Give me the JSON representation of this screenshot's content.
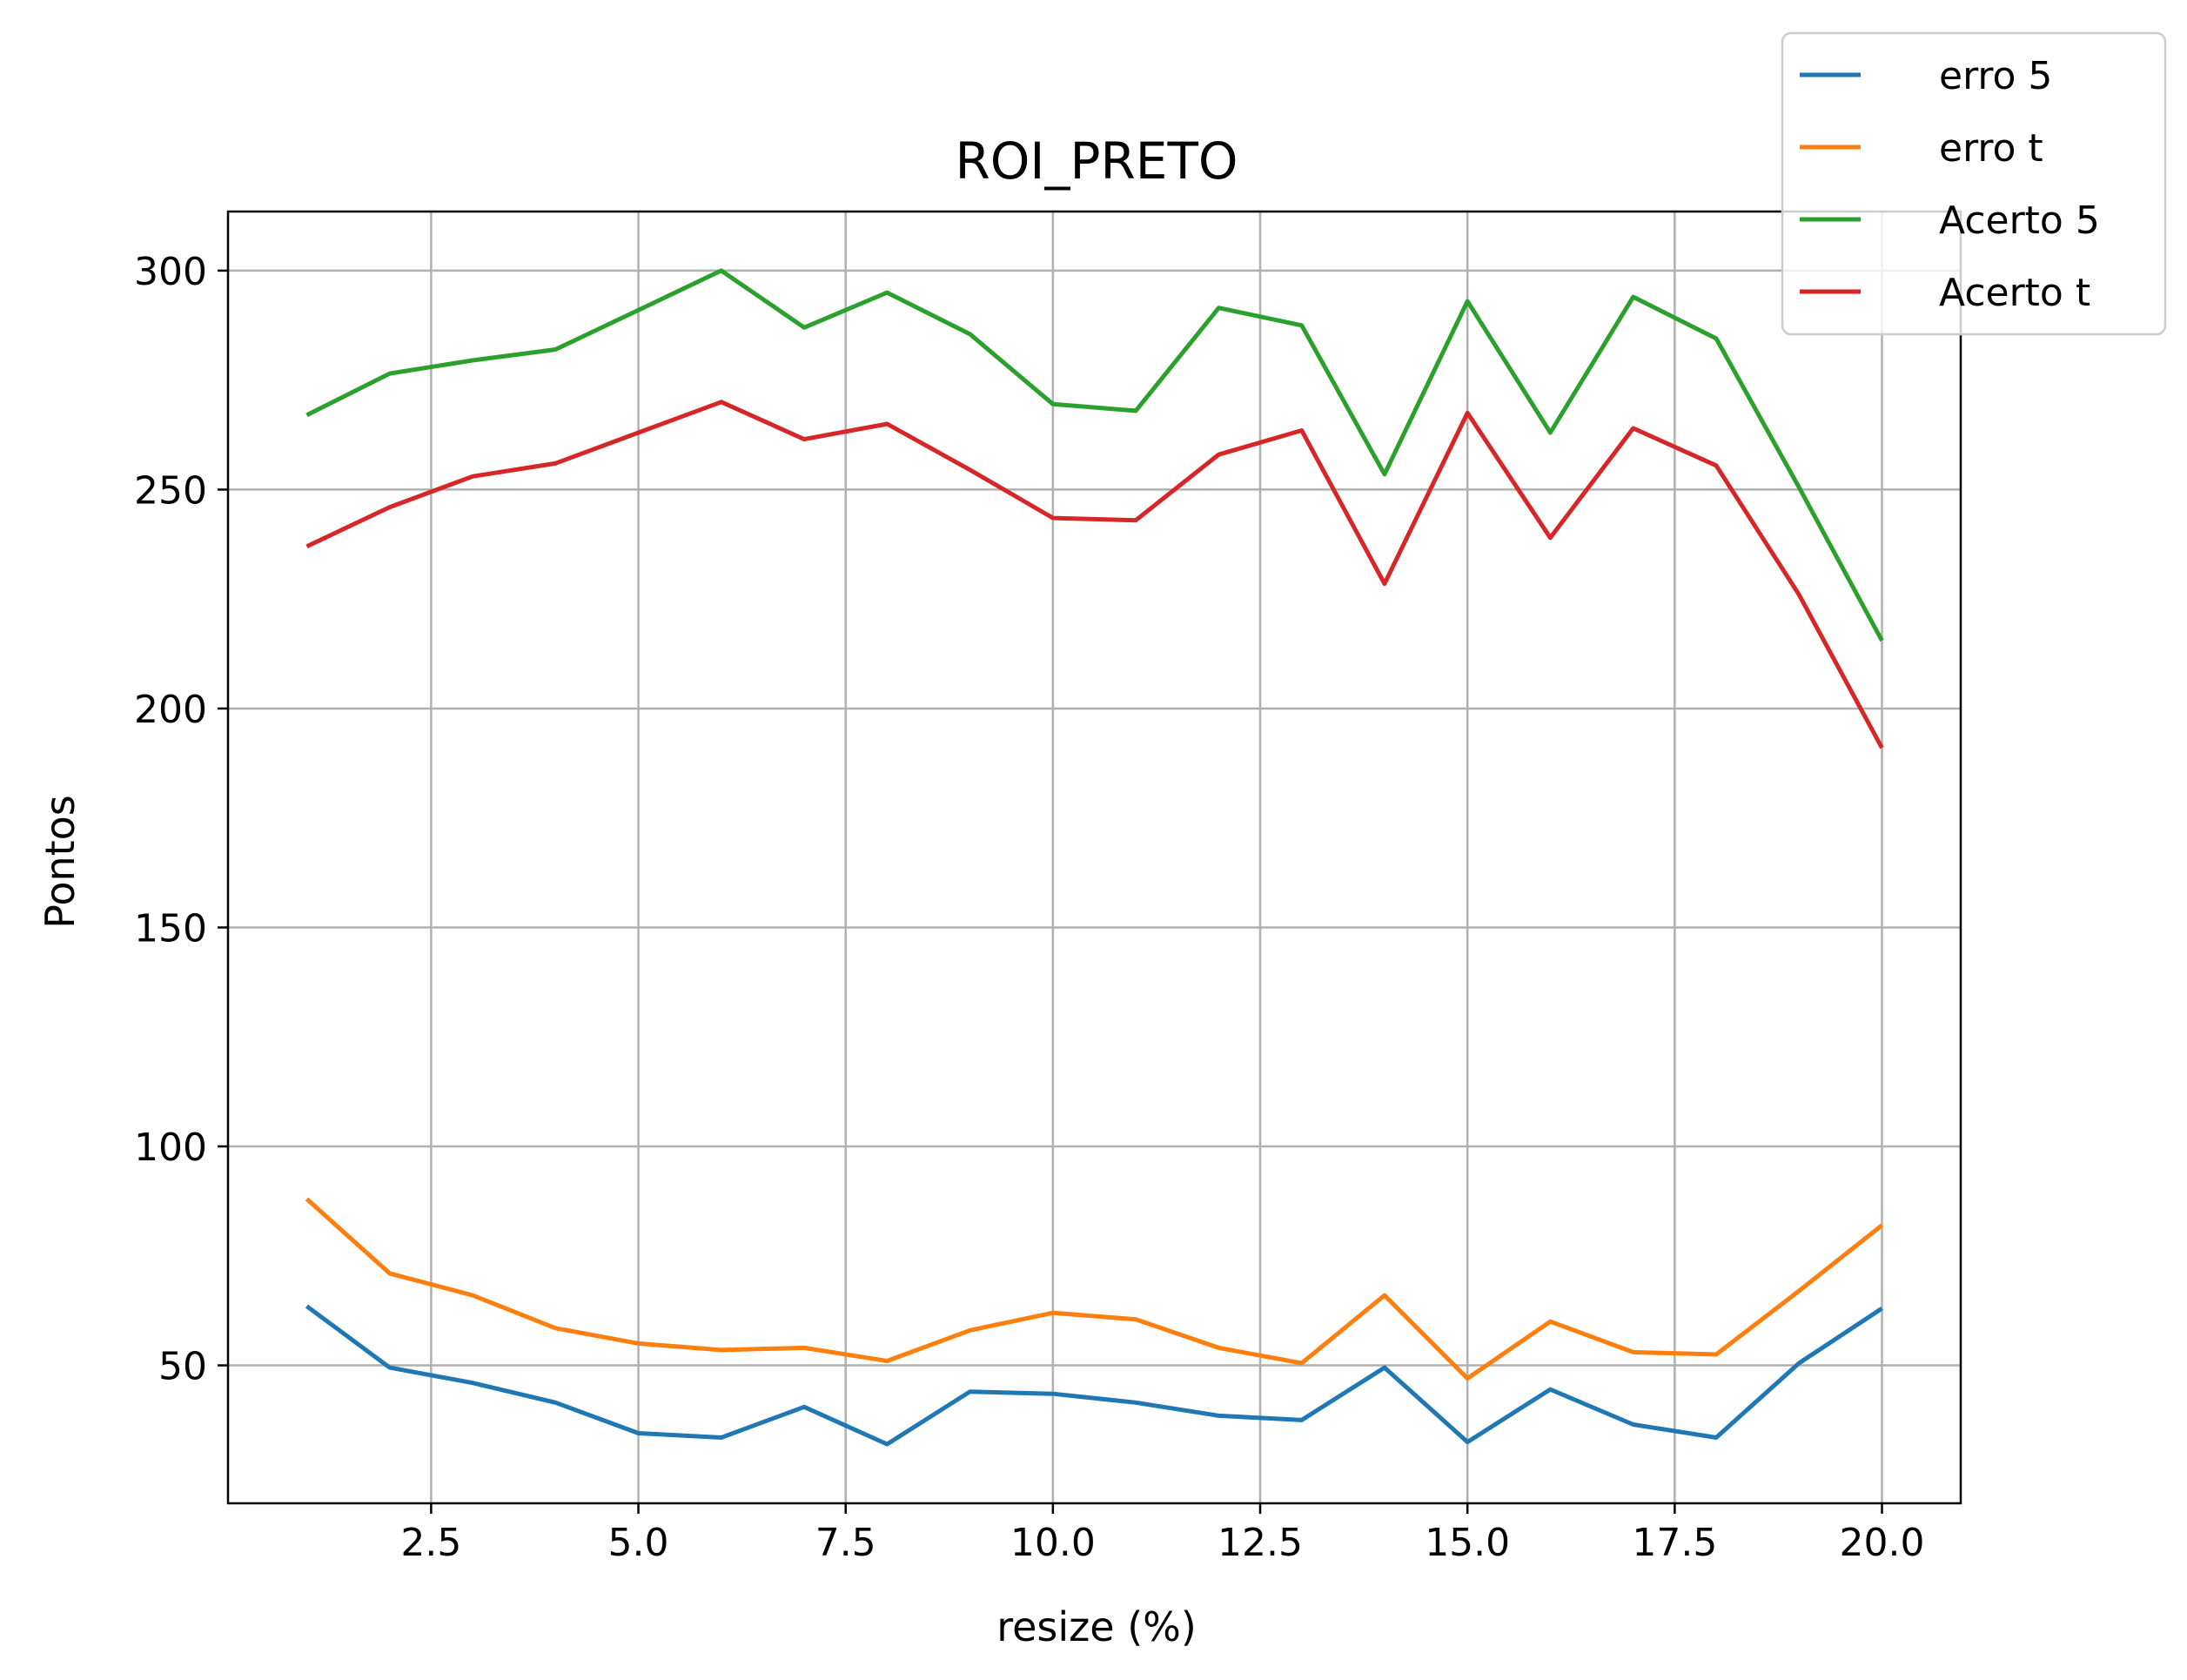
{
  "chart_data": {
    "type": "line",
    "title": "ROI_PRETO",
    "xlabel": "resize (%)",
    "ylabel": "Pontos",
    "xlim": [
      0.05,
      20.95
    ],
    "ylim": [
      18.5,
      313.5
    ],
    "xticks": [
      2.5,
      5.0,
      7.5,
      10.0,
      12.5,
      15.0,
      17.5,
      20.0
    ],
    "xtick_labels": [
      "2.5",
      "5.0",
      "7.5",
      "10.0",
      "12.5",
      "15.0",
      "17.5",
      "20.0"
    ],
    "yticks": [
      50,
      100,
      150,
      200,
      250,
      300
    ],
    "ytick_labels": [
      "50",
      "100",
      "150",
      "200",
      "250",
      "300"
    ],
    "grid": true,
    "legend_position": "top-right, outside axes",
    "x": [
      1,
      2,
      3,
      4,
      5,
      6,
      7,
      8,
      9,
      10,
      11,
      12,
      13,
      14,
      15,
      16,
      17,
      18,
      19,
      20
    ],
    "series": [
      {
        "name": "erro 5",
        "color": "#1f77b4",
        "values": [
          63.5,
          49.5,
          46,
          41.5,
          34.5,
          33.5,
          40.5,
          32,
          44,
          43.5,
          41.5,
          38.5,
          37.5,
          49.5,
          32.5,
          44.5,
          36.5,
          33.5,
          50.5,
          63
        ]
      },
      {
        "name": "erro t",
        "color": "#ff7f0e",
        "values": [
          88,
          71,
          66,
          58.5,
          55,
          53.5,
          54,
          51,
          58,
          62,
          60.5,
          54,
          50.5,
          66,
          47,
          60,
          53,
          52.5,
          67,
          82
        ]
      },
      {
        "name": "Acerto 5",
        "color": "#2ca02c",
        "values": [
          267,
          276.5,
          279.5,
          282,
          291,
          300,
          287,
          295,
          285.5,
          269.5,
          268,
          291.5,
          287.5,
          253.5,
          293,
          263,
          294,
          284.5,
          250.5,
          215.5
        ]
      },
      {
        "name": "Acerto t",
        "color": "#d62728",
        "values": [
          237,
          246,
          253,
          256,
          263,
          270,
          261.5,
          265,
          254.5,
          243.5,
          243,
          258,
          263.5,
          228.5,
          267.5,
          239,
          264,
          255.5,
          226,
          191
        ]
      }
    ]
  }
}
